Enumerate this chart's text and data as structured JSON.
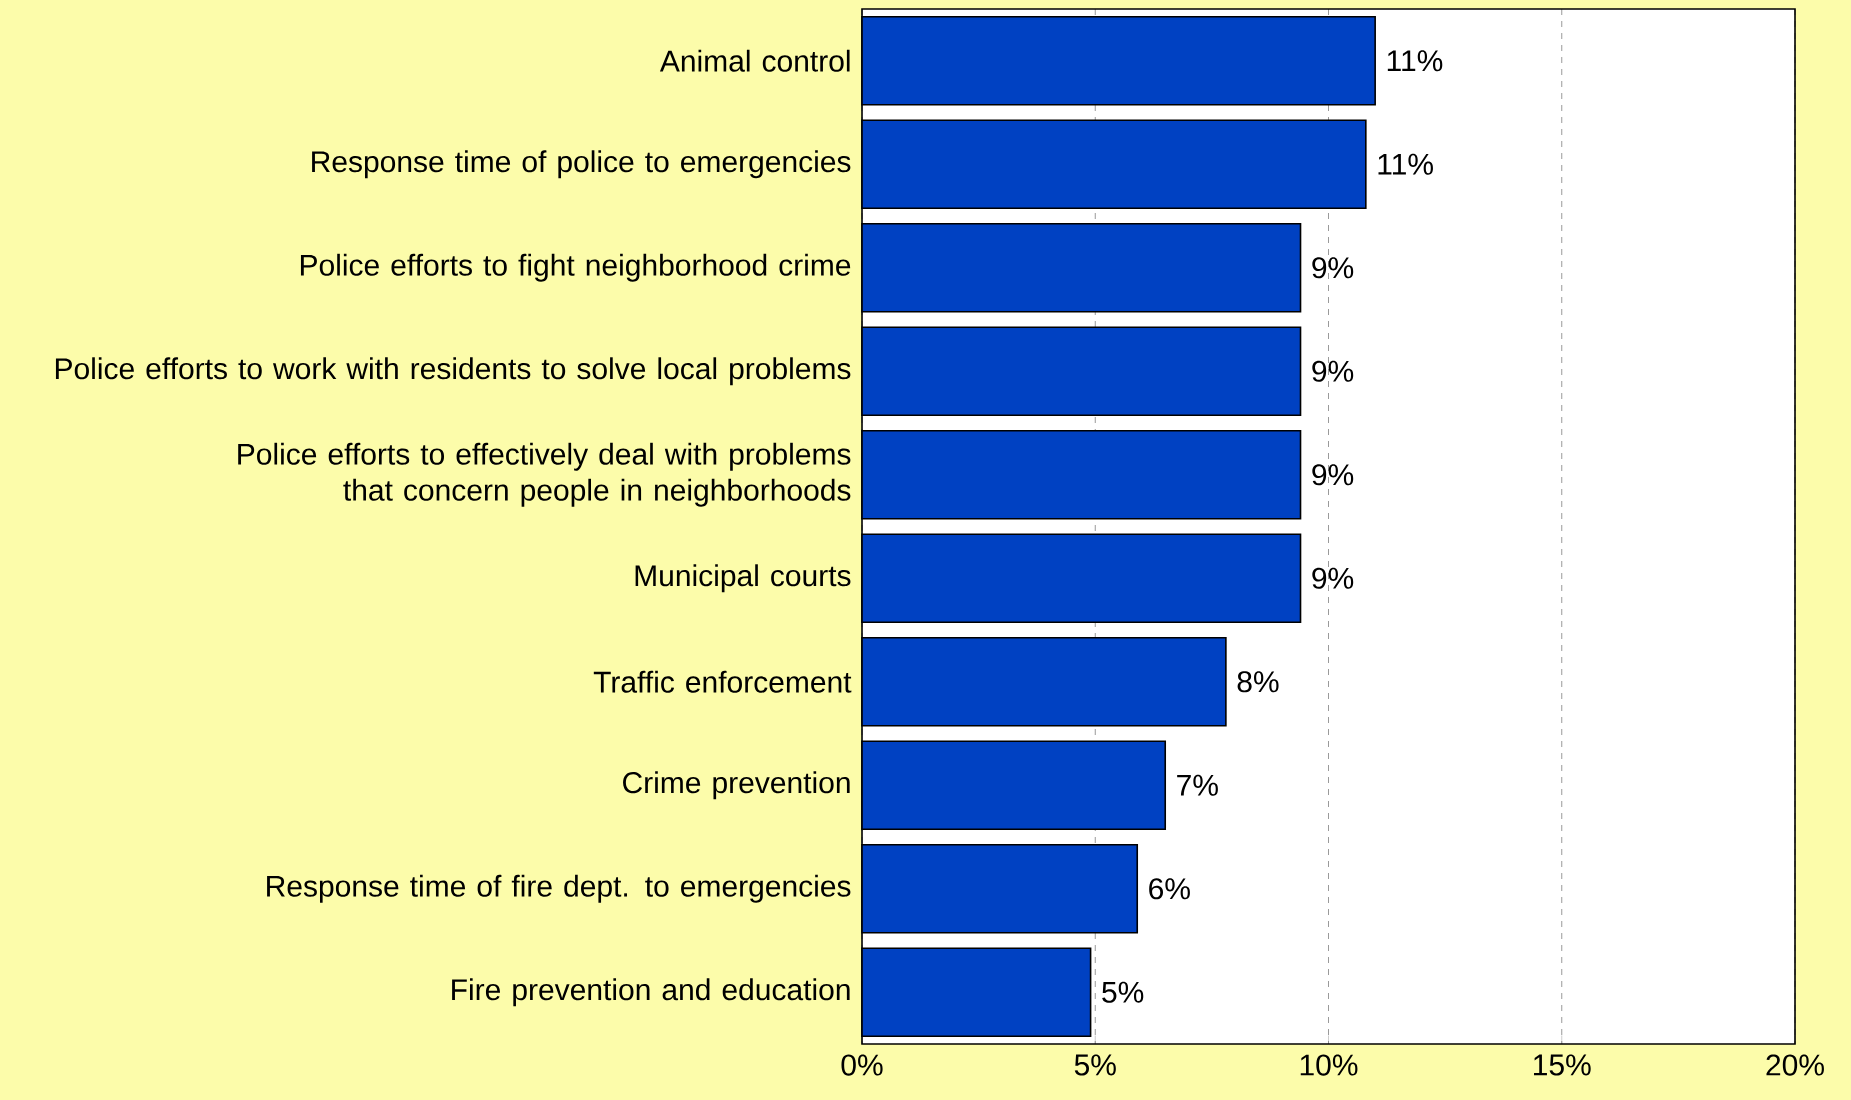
{
  "chart_data": {
    "type": "bar",
    "orientation": "horizontal",
    "categories": [
      "Animal control",
      "Response time of police to emergencies",
      "Police efforts to fight neighborhood crime",
      "Police efforts to work with residents to solve local problems",
      "Police efforts to effectively deal with problems that concern people in neighborhoods",
      "Municipal courts",
      "Traffic enforcement",
      "Crime prevention",
      "Response time of fire dept. to emergencies",
      "Fire prevention and education"
    ],
    "values": [
      11.0,
      10.8,
      9.4,
      9.4,
      9.4,
      9.4,
      7.8,
      6.5,
      5.9,
      4.9
    ],
    "value_labels": [
      "11%",
      "11%",
      "9%",
      "9%",
      "9%",
      "9%",
      "8%",
      "7%",
      "6%",
      "5%"
    ],
    "color": "#0041c2",
    "xlim": [
      0,
      20
    ],
    "xticks": [
      {
        "value": 0,
        "label": "0%"
      },
      {
        "value": 5,
        "label": "5%"
      },
      {
        "value": 10,
        "label": "10%"
      },
      {
        "value": 15,
        "label": "15%"
      },
      {
        "value": 20,
        "label": "20%"
      }
    ],
    "grid": "x"
  }
}
